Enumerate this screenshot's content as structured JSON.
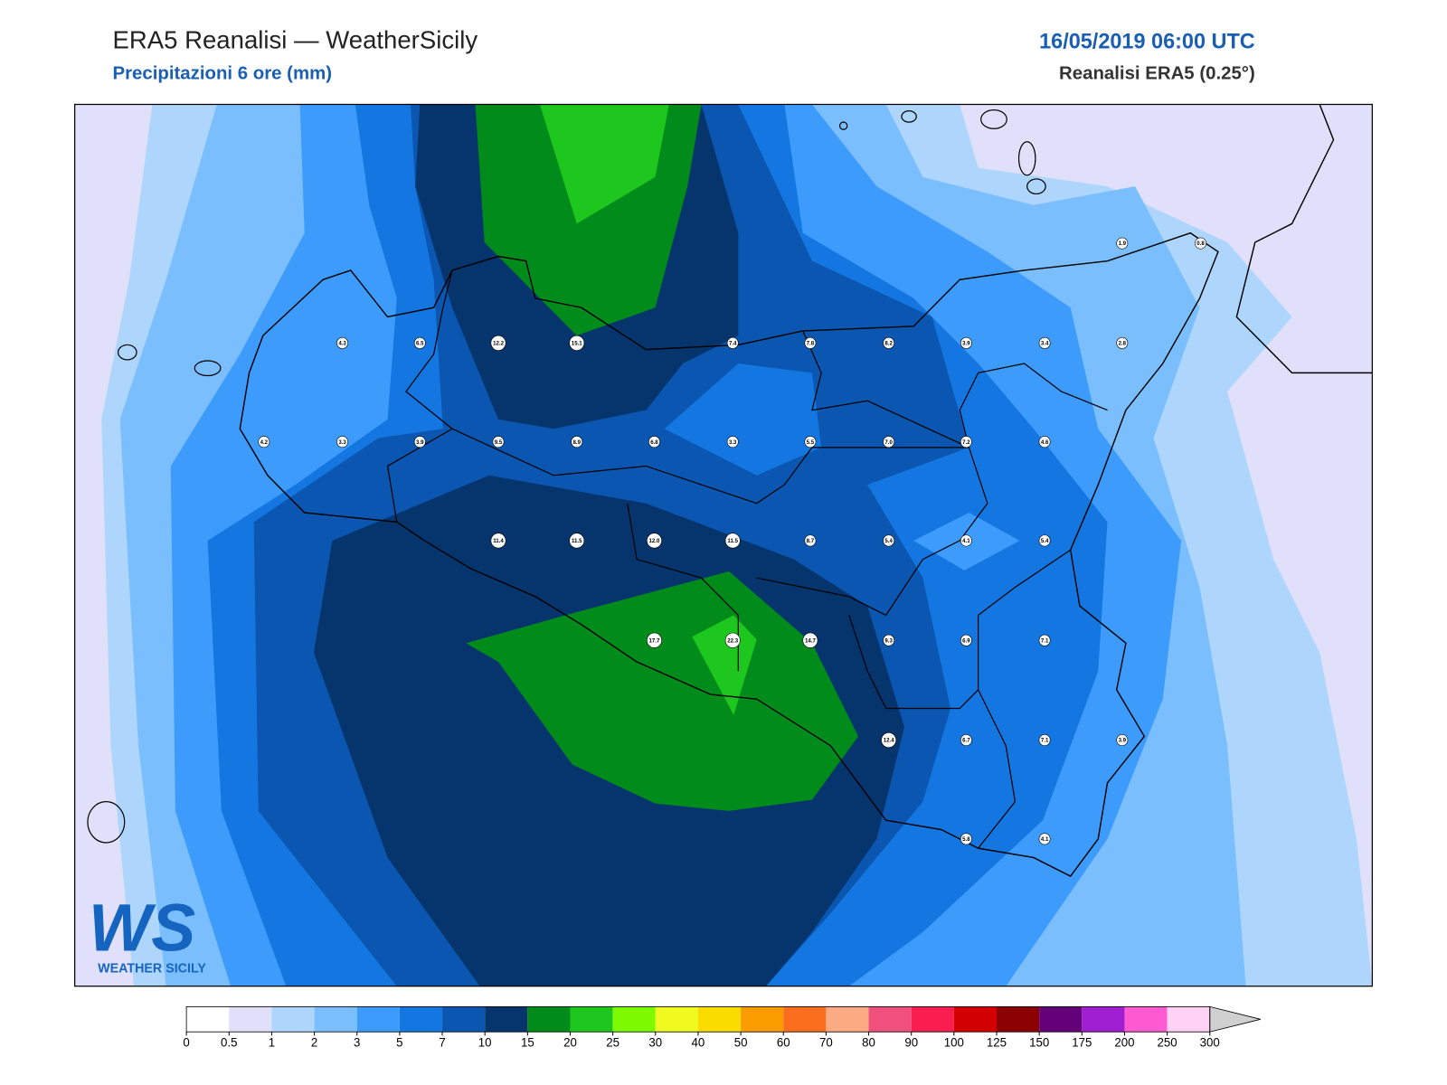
{
  "header": {
    "title": "ERA5 Reanalisi — WeatherSicily",
    "subtitle": "Precipitazioni 6 ore (mm)",
    "date": "16/05/2019 06:00 UTC",
    "source": "Reanalisi ERA5 (0.25°)"
  },
  "stations": [
    "1.9",
    "0.8",
    "4.3",
    "6.5",
    "12.2",
    "15.1",
    "7.4",
    "7.8",
    "8.2",
    "3.9",
    "3.4",
    "2.8",
    "4.2",
    "3.3",
    "3.9",
    "9.5",
    "8.9",
    "6.8",
    "3.3",
    "5.5",
    "7.0",
    "7.2",
    "4.6",
    "11.4",
    "11.5",
    "12.0",
    "11.5",
    "8.7",
    "5.4",
    "4.1",
    "5.4",
    "17.7",
    "22.3",
    "14.7",
    "9.3",
    "6.9",
    "7.1",
    "12.4",
    "6.7",
    "7.1",
    "3.9",
    "5.8",
    "4.1"
  ],
  "colorbar": {
    "ticks": [
      0,
      0.5,
      1,
      2,
      3,
      5,
      7,
      10,
      15,
      20,
      25,
      30,
      40,
      50,
      60,
      70,
      80,
      90,
      100,
      125,
      150,
      175,
      200,
      250,
      300
    ],
    "colors": [
      "#ffffff",
      "#e0e0fa",
      "#aed6fd",
      "#7bbefd",
      "#3d9bfc",
      "#1476e0",
      "#0a56b0",
      "#06356d",
      "#008b1a",
      "#1ec71e",
      "#7dfa00",
      "#f0fa1e",
      "#fadc00",
      "#fa9b00",
      "#fa6e1e",
      "#fcaa82",
      "#f0507d",
      "#fa1e50",
      "#d20000",
      "#8b0000",
      "#640078",
      "#a01ed2",
      "#ff5ad2",
      "#ffd2f5"
    ],
    "extend_color": "#d0d0d0"
  },
  "logo": {
    "mark": "WS",
    "name": "WEATHER SICILY"
  }
}
